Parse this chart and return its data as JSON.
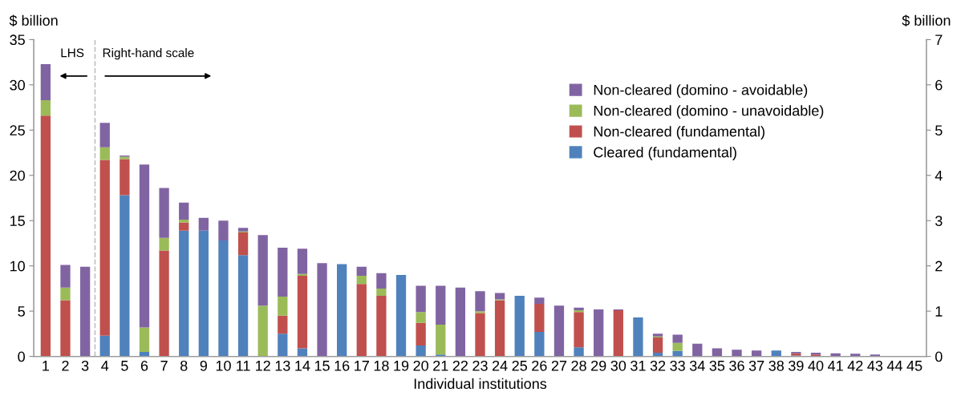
{
  "chart_data": {
    "type": "bar",
    "stacked": true,
    "xlabel": "Individual institutions",
    "ylabel": "$ billion",
    "y2label": "$ billion",
    "x": [
      1,
      2,
      3,
      4,
      5,
      6,
      7,
      8,
      9,
      10,
      11,
      12,
      13,
      14,
      15,
      16,
      17,
      18,
      19,
      20,
      21,
      22,
      23,
      24,
      25,
      26,
      27,
      28,
      29,
      30,
      31,
      32,
      33,
      34,
      35,
      36,
      37,
      38,
      39,
      40,
      41,
      42,
      43,
      44,
      45
    ],
    "xlim": [
      0.4,
      45.6
    ],
    "xticks": [
      1,
      2,
      3,
      4,
      5,
      6,
      7,
      8,
      9,
      10,
      11,
      12,
      13,
      14,
      15,
      16,
      17,
      18,
      19,
      20,
      21,
      22,
      23,
      24,
      25,
      26,
      27,
      28,
      29,
      30,
      31,
      32,
      33,
      34,
      35,
      36,
      37,
      38,
      39,
      40,
      41,
      42,
      43,
      44,
      45
    ],
    "ylim": [
      0,
      35
    ],
    "yticks": [
      0,
      5,
      10,
      15,
      20,
      25,
      30,
      35
    ],
    "y2lim": [
      0,
      7
    ],
    "y2ticks": [
      0,
      1,
      2,
      3,
      4,
      5,
      6,
      7
    ],
    "series": [
      {
        "name": "Cleared (fundamental)",
        "color": "#4f81bd",
        "values": [
          0,
          0,
          0,
          null,
          null,
          null,
          null,
          null,
          null,
          null,
          null,
          null,
          null,
          null,
          null,
          null,
          null,
          null,
          null,
          null,
          null,
          null,
          null,
          null,
          null,
          null,
          null,
          null,
          null,
          null,
          null,
          null,
          null,
          null,
          null,
          null,
          null,
          null,
          null,
          null,
          null,
          null,
          null,
          null,
          null
        ]
      },
      {
        "name": "Non-cleared (fundamental)",
        "color": "#c0504d",
        "values": [
          26.6,
          6.2,
          0,
          null,
          null,
          null,
          null,
          null,
          null,
          null,
          null,
          null,
          null,
          null,
          null,
          null,
          null,
          null,
          null,
          null,
          null,
          null,
          null,
          null,
          null,
          null,
          null,
          null,
          null,
          null,
          null,
          null,
          null,
          null,
          null,
          null,
          null,
          null,
          null,
          null,
          null,
          null,
          null,
          null,
          null
        ]
      },
      {
        "name": "Non-cleared (domino - unavoidable)",
        "color": "#9bbb59",
        "values": [
          1.7,
          1.4,
          0,
          null,
          null,
          null,
          null,
          null,
          null,
          null,
          null,
          null,
          null,
          null,
          null,
          null,
          null,
          null,
          null,
          null,
          null,
          null,
          null,
          null,
          null,
          null,
          null,
          null,
          null,
          null,
          null,
          null,
          null,
          null,
          null,
          null,
          null,
          null,
          null,
          null,
          null,
          null,
          null,
          null,
          null
        ]
      },
      {
        "name": "Non-cleared (domino - avoidable)",
        "color": "#8064a2",
        "values": [
          4.0,
          2.5,
          9.9,
          null,
          null,
          null,
          null,
          null,
          null,
          null,
          null,
          null,
          null,
          null,
          null,
          null,
          null,
          null,
          null,
          null,
          null,
          null,
          null,
          null,
          null,
          null,
          null,
          null,
          null,
          null,
          null,
          null,
          null,
          null,
          null,
          null,
          null,
          null,
          null,
          null,
          null,
          null,
          null,
          null,
          null
        ]
      },
      {
        "color": "#4f81bd",
        "axis": "y2",
        "values": [
          null,
          null,
          null,
          0.46,
          3.56,
          0.1,
          0,
          2.78,
          2.78,
          2.56,
          2.24,
          0,
          0.5,
          0.18,
          0,
          2.04,
          0,
          0,
          1.8,
          0.24,
          0.04,
          0,
          0,
          0,
          1.34,
          0.54,
          0,
          0.2,
          0,
          0,
          0.86,
          0.08,
          0.12,
          0,
          0,
          0,
          0,
          0.13,
          0.02,
          0,
          0,
          0,
          0,
          0,
          0
        ]
      },
      {
        "color": "#c0504d",
        "axis": "y2",
        "values": [
          null,
          null,
          null,
          3.88,
          0.8,
          0,
          2.34,
          0.18,
          0,
          0,
          0.5,
          0,
          0.4,
          1.6,
          0,
          0,
          1.6,
          1.34,
          0,
          0.5,
          0,
          0,
          0.96,
          1.24,
          0,
          0.62,
          0,
          0.78,
          0,
          1.02,
          0,
          0.34,
          0,
          0,
          0,
          0,
          0,
          0,
          0.05,
          0.04,
          0,
          0,
          0,
          0,
          0
        ]
      },
      {
        "color": "#9bbb59",
        "axis": "y2",
        "values": [
          null,
          null,
          null,
          0.28,
          0.05,
          0.54,
          0.28,
          0.06,
          0,
          0,
          0.02,
          1.12,
          0.42,
          0.04,
          0,
          0,
          0.18,
          0.16,
          0,
          0.24,
          0.66,
          0,
          0.04,
          0.02,
          0,
          0,
          0,
          0.04,
          0,
          0,
          0,
          0.02,
          0.18,
          0,
          0,
          0,
          0,
          0,
          0,
          0,
          0,
          0,
          0,
          0,
          0
        ]
      },
      {
        "color": "#8064a2",
        "axis": "y2",
        "values": [
          null,
          null,
          null,
          0.54,
          0.03,
          3.6,
          1.1,
          0.38,
          0.28,
          0.44,
          0.08,
          1.56,
          1.08,
          0.56,
          2.06,
          0,
          0.2,
          0.34,
          0,
          0.58,
          0.86,
          1.52,
          0.44,
          0.14,
          0,
          0.14,
          1.12,
          0.06,
          1.04,
          0.02,
          0,
          0.06,
          0.18,
          0.28,
          0.18,
          0.15,
          0.13,
          0,
          0.03,
          0.04,
          0.07,
          0.06,
          0.04,
          0,
          0
        ]
      }
    ],
    "ref_lines": [
      {
        "axis": "x",
        "value": 3.5,
        "color": "#bfbfbf",
        "line_style": "dashed"
      }
    ],
    "annotations": [
      "LHS",
      "Right-hand scale"
    ],
    "legend": "top right",
    "grid": false
  }
}
